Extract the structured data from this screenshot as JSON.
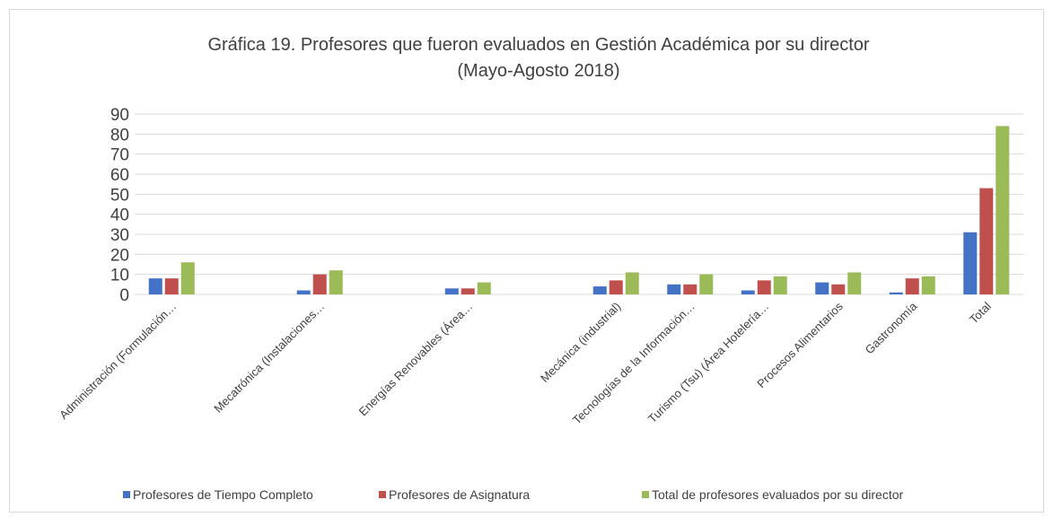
{
  "chart_data": {
    "type": "bar",
    "title": "Gráfica 19. Profesores que fueron evaluados en Gestión Académica por su director",
    "subtitle": "(Mayo-Agosto 2018)",
    "categories": [
      "Administración  (Formulación…",
      null,
      "Mecatrónica  (Instalaciones…",
      null,
      "Energías Renovables (Área…",
      null,
      "Mecánica (industrial)",
      "Tecnologías de la Información…",
      "Turismo (Tsu) (Área Hotelería…",
      "Procesos Alimentarios",
      "Gastronomía",
      "Total"
    ],
    "series": [
      {
        "name": "Profesores de Tiempo Completo",
        "color": "#4472c4",
        "values": [
          8,
          null,
          2,
          null,
          3,
          null,
          4,
          5,
          2,
          6,
          1,
          31
        ]
      },
      {
        "name": "Profesores de Asignatura",
        "color": "#c0504d",
        "values": [
          8,
          null,
          10,
          null,
          3,
          null,
          7,
          5,
          7,
          5,
          8,
          53
        ]
      },
      {
        "name": "Total de profesores evaluados por su director",
        "color": "#9bbb59",
        "values": [
          16,
          null,
          12,
          null,
          6,
          null,
          11,
          10,
          9,
          11,
          9,
          84
        ]
      }
    ],
    "ylim": [
      0,
      90
    ],
    "yticks": [
      0,
      10,
      20,
      30,
      40,
      50,
      60,
      70,
      80,
      90
    ],
    "grid": true,
    "legend": "bottom"
  }
}
